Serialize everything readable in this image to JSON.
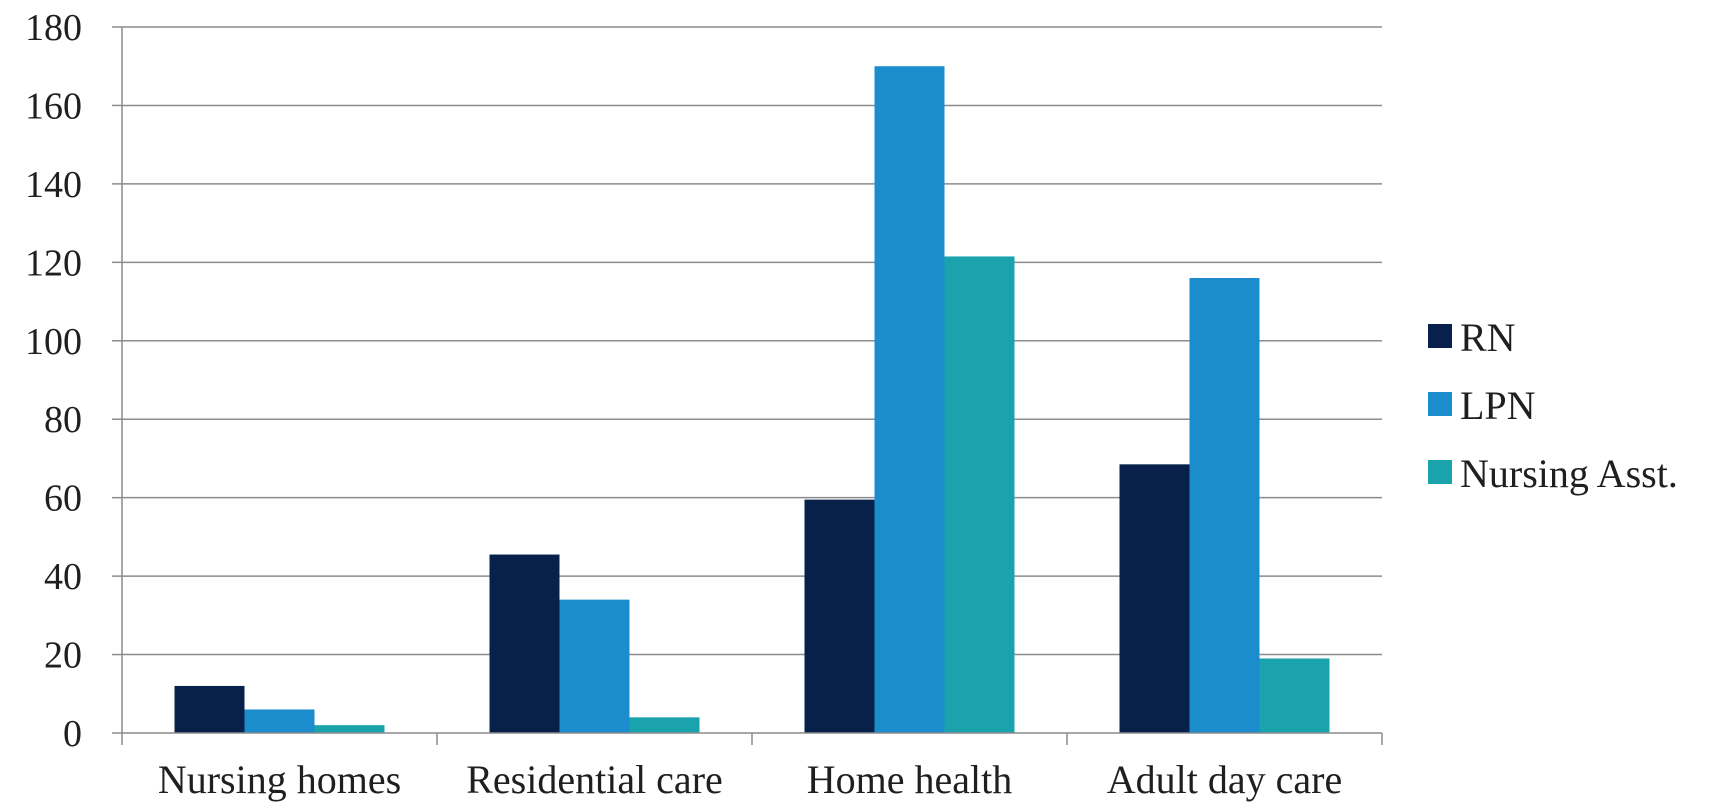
{
  "chart_data": {
    "type": "bar",
    "categories": [
      "Nursing homes",
      "Residential care",
      "Home health",
      "Adult day care"
    ],
    "series": [
      {
        "name": "RN",
        "color": "#08214a",
        "values": [
          12,
          45.5,
          59.5,
          68.5
        ]
      },
      {
        "name": "LPN",
        "color": "#1b8ccc",
        "values": [
          6,
          34,
          170,
          116
        ]
      },
      {
        "name": "Nursing Asst.",
        "color": "#1ba3ad",
        "values": [
          2,
          4,
          121.5,
          19
        ]
      }
    ],
    "ylim": [
      0,
      180
    ],
    "yticks": [
      0,
      20,
      40,
      60,
      80,
      100,
      120,
      140,
      160,
      180
    ],
    "grid": true,
    "legend_position": "right",
    "title": "",
    "xlabel": "",
    "ylabel": ""
  }
}
